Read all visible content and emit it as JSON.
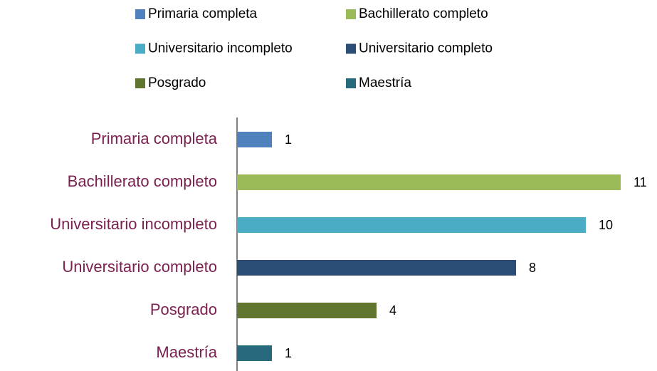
{
  "chart_data": {
    "type": "bar",
    "orientation": "horizontal",
    "categories": [
      "Primaria completa",
      "Bachillerato completo",
      "Universitario incompleto",
      "Universitario completo",
      "Posgrado",
      "Maestría"
    ],
    "values": [
      1,
      11,
      10,
      8,
      4,
      1
    ],
    "colors": [
      "#4f81bd",
      "#9bbb59",
      "#4bacc6",
      "#2c4d75",
      "#5f7530",
      "#276a7c"
    ],
    "legend": "top"
  }
}
